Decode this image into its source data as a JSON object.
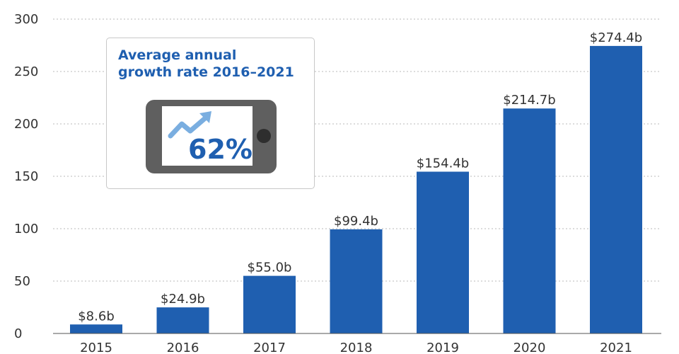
{
  "chart_data": {
    "type": "bar",
    "categories": [
      "2015",
      "2016",
      "2017",
      "2018",
      "2019",
      "2020",
      "2021"
    ],
    "values": [
      8.6,
      24.9,
      55.0,
      99.4,
      154.4,
      214.7,
      274.4
    ],
    "value_labels": [
      "$8.6b",
      "$24.9b",
      "$55.0b",
      "$99.4b",
      "$154.4b",
      "$214.7b",
      "$274.4b"
    ],
    "y_ticks": [
      0,
      50,
      100,
      150,
      200,
      250,
      300
    ],
    "ylim": [
      0,
      300
    ],
    "grid": "horizontal dotted",
    "bar_color": "#1f5fb0"
  },
  "callout": {
    "title_line1": "Average annual",
    "title_line2": "growth rate 2016–2021",
    "value": "62%",
    "icon": "smartphone-trend-up-icon",
    "title_color": "#1f5fb0",
    "phone_color": "#5f5f5f",
    "arrow_color": "#7aaee0"
  }
}
